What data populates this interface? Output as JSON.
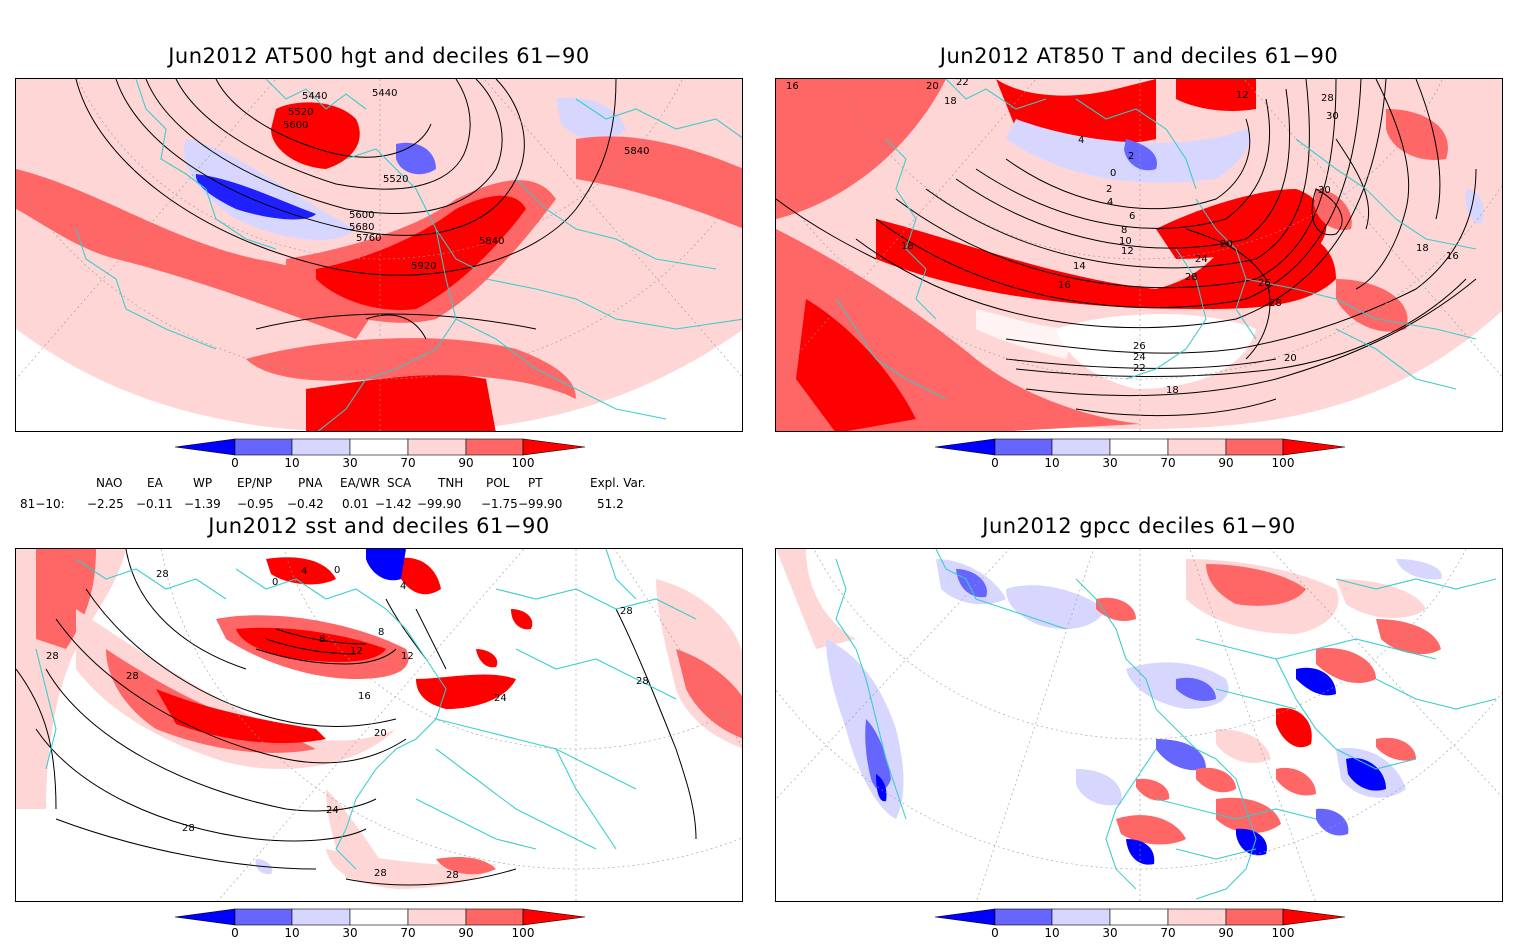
{
  "panels": [
    {
      "title": "Jun2012 AT500 hgt and deciles 61−90",
      "contour_labels": [
        "5440",
        "5440",
        "5520",
        "5600",
        "5520",
        "5600",
        "5680",
        "5760",
        "5840",
        "5840",
        "5920"
      ]
    },
    {
      "title": "Jun2012 AT850 T and deciles 61−90",
      "contour_labels": [
        "16",
        "20",
        "22",
        "18",
        "12",
        "4",
        "2",
        "0",
        "2",
        "4",
        "6",
        "8",
        "10",
        "12",
        "14",
        "16",
        "18",
        "20",
        "24",
        "28",
        "26",
        "28",
        "30",
        "30",
        "28",
        "20",
        "26",
        "24",
        "22",
        "18",
        "16",
        "18"
      ]
    },
    {
      "title": "Jun2012 sst and deciles 61−90",
      "contour_labels": [
        "28",
        "28",
        "28",
        "0",
        "4",
        "0",
        "4",
        "8",
        "8",
        "12",
        "12",
        "16",
        "20",
        "24",
        "28",
        "28",
        "28",
        "28",
        "24",
        "28"
      ]
    },
    {
      "title": "Jun2012 gpcc deciles 61−90",
      "contour_labels": []
    }
  ],
  "colorbar": {
    "ticks": [
      "0",
      "10",
      "30",
      "70",
      "90",
      "100"
    ],
    "colors": [
      "#0000ff",
      "#6666ff",
      "#d6d6ff",
      "#ffffff",
      "#ffd6d6",
      "#ff6666",
      "#ff0000"
    ]
  },
  "indices": {
    "names": [
      "NAO",
      "EA",
      "WP",
      "EP/NP",
      "PNA",
      "EA/WR",
      "SCA",
      "TNH",
      "POL",
      "PT",
      "Expl. Var."
    ],
    "period": "81−10:",
    "values": [
      "−2.25",
      "−0.11",
      "−1.39",
      "−0.95",
      "−0.42",
      "0.01",
      "−1.42",
      "−99.90",
      "−1.75",
      "−99.90",
      "51.2"
    ]
  }
}
